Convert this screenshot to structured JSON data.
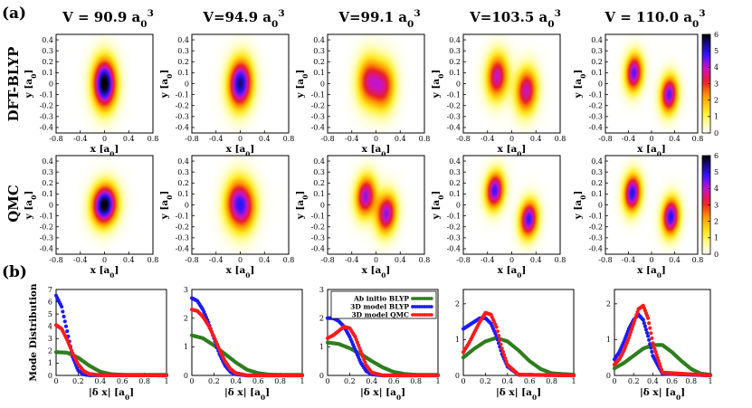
{
  "panel_labels": [
    "(a)",
    "(b)"
  ],
  "row_labels": [
    "DFT-BLYP",
    "QMC"
  ],
  "colorbar_ticks": [
    "0",
    "1",
    "2",
    "3",
    "4",
    "5",
    "6"
  ],
  "colors": {
    "green": "#2e7d1e",
    "blue": "#1a1aff",
    "red": "#ff1a1a"
  },
  "chart_data": [
    {
      "type": "heatmap",
      "panel": "(a)",
      "title_prefix": "V",
      "titles": [
        "V = 90.9 a",
        "V=94.9 a",
        "V=99.1 a",
        "V=103.5 a",
        "V = 110.0 a"
      ],
      "title_subscript": "0",
      "title_superscript": "3",
      "xlabel": "x [a",
      "ylabel": "y [a",
      "label_subscript": "0",
      "label_suffix": "]",
      "xlim": [
        -0.8,
        0.8
      ],
      "ylim": [
        -0.45,
        0.45
      ],
      "xticks": [
        "-0.8",
        "-0.4",
        "0",
        "0.4",
        "0.8"
      ],
      "yticks": [
        "-0.4",
        "-0.3",
        "-0.2",
        "-0.1",
        "0",
        "0.1",
        "0.2",
        "0.3",
        "0.4"
      ],
      "colorbar_range": [
        0,
        6
      ],
      "rows": [
        {
          "name": "DFT-BLYP",
          "peaks": [
            {
              "separation": 0.0,
              "angle_deg": 0,
              "spread": 0.13,
              "max": 6.2
            },
            {
              "separation": 0.06,
              "angle_deg": -15,
              "spread": 0.13,
              "max": 5.2
            },
            {
              "separation": 0.26,
              "angle_deg": -12,
              "spread": 0.13,
              "max": 4.3
            },
            {
              "separation": 0.5,
              "angle_deg": -15,
              "spread": 0.12,
              "max": 4.0
            },
            {
              "separation": 0.64,
              "angle_deg": -18,
              "spread": 0.1,
              "max": 4.6
            }
          ]
        },
        {
          "name": "QMC",
          "peaks": [
            {
              "separation": 0.05,
              "angle_deg": -75,
              "spread": 0.12,
              "max": 5.8
            },
            {
              "separation": 0.18,
              "angle_deg": -25,
              "spread": 0.13,
              "max": 4.8
            },
            {
              "separation": 0.38,
              "angle_deg": -25,
              "spread": 0.11,
              "max": 4.5
            },
            {
              "separation": 0.62,
              "angle_deg": -25,
              "spread": 0.1,
              "max": 4.8
            },
            {
              "separation": 0.7,
              "angle_deg": -18,
              "spread": 0.1,
              "max": 5.0
            }
          ]
        }
      ]
    },
    {
      "type": "scatter",
      "panel": "(b)",
      "ylabel": "Mode Distribution",
      "xlabel": "|δ x|   [a",
      "xlabel_subscript": "0",
      "xlabel_suffix": "]",
      "xlim": [
        0,
        1
      ],
      "xticks": [
        "0",
        "0.2",
        "0.4",
        "0.6",
        "0.8",
        "1"
      ],
      "legend_position": "top-right",
      "series_names": [
        "Ab initio BLYP",
        "3D model BLYP",
        "3D model QMC"
      ],
      "subplots": [
        {
          "ylim": [
            0,
            7
          ],
          "yticks": [
            "0",
            "1",
            "2",
            "3",
            "4",
            "5",
            "6",
            "7"
          ],
          "series": [
            {
              "name": "Ab initio BLYP",
              "x": [
                0,
                0.1,
                0.2,
                0.3,
                0.4,
                0.5,
                0.6,
                1.0
              ],
              "y": [
                1.9,
                1.85,
                1.45,
                0.8,
                0.3,
                0.1,
                0.05,
                0.05
              ]
            },
            {
              "name": "3D model BLYP",
              "x": [
                0,
                0.05,
                0.1,
                0.15,
                0.2,
                0.25,
                0.3,
                1.0
              ],
              "y": [
                6.5,
                5.6,
                3.6,
                1.5,
                0.4,
                0.08,
                0.02,
                0.0
              ]
            },
            {
              "name": "3D model QMC",
              "x": [
                0,
                0.05,
                0.1,
                0.15,
                0.2,
                0.25,
                0.3,
                0.4,
                1.0
              ],
              "y": [
                4.1,
                3.8,
                2.9,
                1.8,
                0.9,
                0.35,
                0.12,
                0.02,
                0.0
              ]
            }
          ]
        },
        {
          "ylim": [
            0,
            3
          ],
          "yticks": [
            "0",
            "1",
            "2",
            "3"
          ],
          "series": [
            {
              "name": "Ab initio BLYP",
              "x": [
                0,
                0.1,
                0.2,
                0.3,
                0.4,
                0.5,
                0.6,
                0.7,
                0.8,
                1.0
              ],
              "y": [
                1.4,
                1.3,
                1.05,
                0.75,
                0.45,
                0.2,
                0.08,
                0.03,
                0.02,
                0.02
              ]
            },
            {
              "name": "3D model BLYP",
              "x": [
                0,
                0.05,
                0.1,
                0.15,
                0.2,
                0.25,
                0.3,
                0.35,
                0.4,
                0.5,
                1.0
              ],
              "y": [
                2.7,
                2.6,
                2.3,
                1.85,
                1.3,
                0.75,
                0.35,
                0.12,
                0.04,
                0.0,
                0.0
              ]
            },
            {
              "name": "3D model QMC",
              "x": [
                0,
                0.05,
                0.1,
                0.15,
                0.2,
                0.25,
                0.3,
                0.35,
                0.4,
                0.5,
                1.0
              ],
              "y": [
                2.3,
                2.25,
                2.05,
                1.75,
                1.35,
                0.9,
                0.5,
                0.22,
                0.08,
                0.0,
                0.0
              ]
            }
          ]
        },
        {
          "ylim": [
            0,
            3
          ],
          "yticks": [
            "0",
            "1",
            "2",
            "3"
          ],
          "series": [
            {
              "name": "Ab initio BLYP",
              "x": [
                0,
                0.1,
                0.2,
                0.3,
                0.4,
                0.5,
                0.6,
                0.7,
                0.8,
                1.0
              ],
              "y": [
                1.15,
                1.1,
                0.95,
                0.75,
                0.5,
                0.28,
                0.12,
                0.05,
                0.02,
                0.02
              ]
            },
            {
              "name": "3D model BLYP",
              "x": [
                0,
                0.05,
                0.1,
                0.15,
                0.2,
                0.25,
                0.3,
                0.35,
                0.4,
                0.5,
                1.0
              ],
              "y": [
                2.0,
                2.0,
                1.9,
                1.7,
                1.35,
                0.9,
                0.45,
                0.15,
                0.04,
                0.0,
                0.0
              ]
            },
            {
              "name": "3D model QMC",
              "x": [
                0,
                0.05,
                0.1,
                0.15,
                0.2,
                0.25,
                0.3,
                0.35,
                0.4,
                0.5,
                1.0
              ],
              "y": [
                1.3,
                1.4,
                1.55,
                1.7,
                1.65,
                1.35,
                0.85,
                0.35,
                0.1,
                0.0,
                0.0
              ]
            }
          ]
        },
        {
          "ylim": [
            0,
            2.4
          ],
          "yticks": [
            "0",
            "1",
            "2"
          ],
          "series": [
            {
              "name": "Ab initio BLYP",
              "x": [
                0,
                0.1,
                0.2,
                0.3,
                0.4,
                0.5,
                0.6,
                0.7,
                0.8,
                1.0
              ],
              "y": [
                0.5,
                0.75,
                0.95,
                1.05,
                0.95,
                0.7,
                0.4,
                0.18,
                0.06,
                0.02
              ]
            },
            {
              "name": "3D model BLYP",
              "x": [
                0,
                0.05,
                0.1,
                0.15,
                0.2,
                0.25,
                0.3,
                0.35,
                0.4,
                0.5,
                1.0
              ],
              "y": [
                1.3,
                1.4,
                1.5,
                1.6,
                1.6,
                1.45,
                1.1,
                0.6,
                0.25,
                0.02,
                0.0
              ]
            },
            {
              "name": "3D model QMC",
              "x": [
                0,
                0.05,
                0.1,
                0.15,
                0.2,
                0.25,
                0.3,
                0.35,
                0.4,
                0.5,
                1.0
              ],
              "y": [
                0.65,
                0.9,
                1.2,
                1.5,
                1.75,
                1.7,
                1.35,
                0.75,
                0.3,
                0.02,
                0.0
              ]
            }
          ]
        },
        {
          "ylim": [
            0,
            2.4
          ],
          "yticks": [
            "0",
            "1",
            "2"
          ],
          "series": [
            {
              "name": "Ab initio BLYP",
              "x": [
                0,
                0.1,
                0.2,
                0.3,
                0.4,
                0.5,
                0.6,
                0.7,
                0.8,
                0.9,
                1.0
              ],
              "y": [
                0.2,
                0.35,
                0.55,
                0.75,
                0.85,
                0.85,
                0.65,
                0.4,
                0.18,
                0.05,
                0.02
              ]
            },
            {
              "name": "3D model BLYP",
              "x": [
                0,
                0.05,
                0.1,
                0.15,
                0.2,
                0.25,
                0.3,
                0.35,
                0.4,
                0.5,
                1.0
              ],
              "y": [
                0.45,
                0.65,
                0.95,
                1.3,
                1.55,
                1.7,
                1.55,
                1.1,
                0.55,
                0.05,
                0.0
              ]
            },
            {
              "name": "3D model QMC",
              "x": [
                0,
                0.05,
                0.1,
                0.15,
                0.2,
                0.25,
                0.3,
                0.35,
                0.4,
                0.5,
                1.0
              ],
              "y": [
                0.3,
                0.45,
                0.7,
                1.05,
                1.45,
                1.85,
                1.95,
                1.6,
                0.9,
                0.08,
                0.0
              ]
            }
          ]
        }
      ]
    }
  ]
}
